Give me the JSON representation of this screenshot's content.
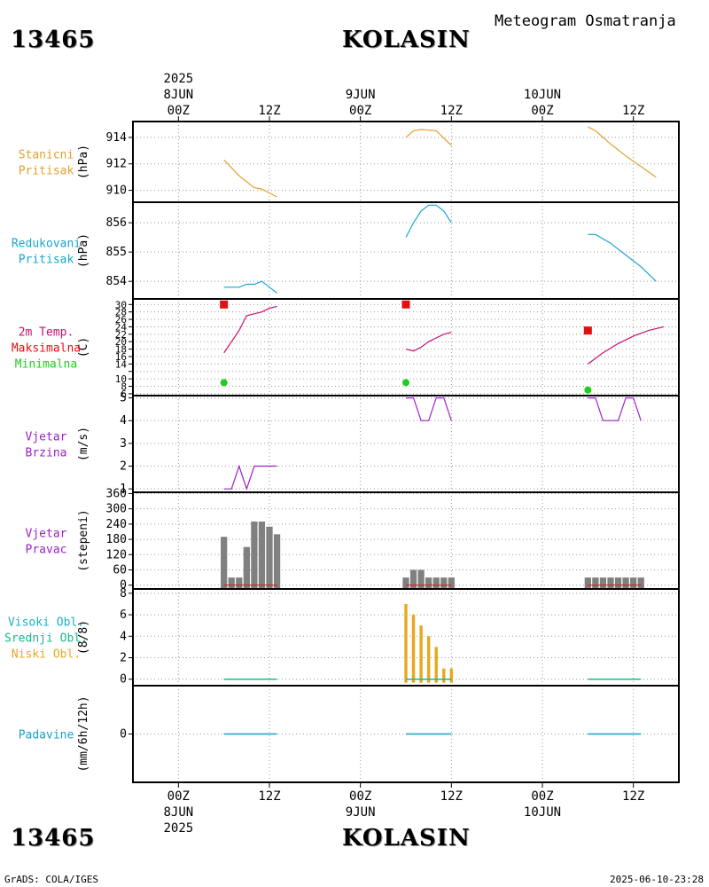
{
  "header": {
    "station_id": "13465",
    "station_name": "KOLASIN",
    "product_title": "Meteogram Osmatranja"
  },
  "footer": {
    "station_id": "13465",
    "station_name": "KOLASIN",
    "credit": "GrADS: COLA/IGES",
    "timestamp": "2025-06-10-23:28"
  },
  "colors": {
    "station_pressure": "#e0a030",
    "reduced_pressure": "#1aa5d0",
    "temp_line": "#c8106e",
    "temp_max": "#e01010",
    "temp_min": "#20cc20",
    "wind": "#a020c8",
    "bars": "#808080",
    "clouds_low": "#e8a820",
    "clouds_mid": "#18b890",
    "clouds_high": "#18b0c8",
    "precip": "#18a0c8",
    "label_wind": "#a020c8"
  },
  "chart_data": {
    "type": "line",
    "title": "Meteogram Osmatranja",
    "station": "13465 KOLASIN",
    "time_axis": {
      "unit": "hours since 2025-06-08 00Z",
      "range": [
        -6,
        66
      ],
      "top_year": "2025",
      "bottom_year": "2025",
      "ticks": [
        {
          "h": 0,
          "time": "00Z",
          "date": "8JUN"
        },
        {
          "h": 12,
          "time": "12Z",
          "date": ""
        },
        {
          "h": 24,
          "time": "00Z",
          "date": "9JUN"
        },
        {
          "h": 36,
          "time": "12Z",
          "date": ""
        },
        {
          "h": 48,
          "time": "00Z",
          "date": "10JUN"
        },
        {
          "h": 60,
          "time": "12Z",
          "date": ""
        }
      ]
    },
    "panels": [
      {
        "id": "station_pressure",
        "labels": [
          {
            "text": "Stanicni",
            "color": "#e0a030"
          },
          {
            "text": "Pritisak",
            "color": "#e0a030"
          }
        ],
        "ylabel": "(hPa)",
        "ylim": [
          909.1,
          915.2
        ],
        "yticks": [
          910,
          912,
          914
        ],
        "series": [
          {
            "name": "Stanicni pritisak",
            "color": "#e0a030",
            "segments": [
              {
                "x": [
                  6,
                  8,
                  10,
                  11,
                  12,
                  13
                ],
                "y": [
                  912.3,
                  911.1,
                  910.2,
                  910.1,
                  909.8,
                  909.5
                ]
              },
              {
                "x": [
                  30,
                  31,
                  32,
                  34,
                  36
                ],
                "y": [
                  914.0,
                  914.5,
                  914.6,
                  914.5,
                  913.4
                ]
              },
              {
                "x": [
                  54,
                  55,
                  57,
                  59,
                  61,
                  63
                ],
                "y": [
                  914.8,
                  914.5,
                  913.5,
                  912.6,
                  911.8,
                  911.0
                ]
              }
            ]
          }
        ]
      },
      {
        "id": "reduced_pressure",
        "labels": [
          {
            "text": "Redukovani",
            "color": "#1aa5d0"
          },
          {
            "text": "Pritisak",
            "color": "#1aa5d0"
          }
        ],
        "ylabel": "(hPa)",
        "ylim": [
          853.4,
          856.7
        ],
        "yticks": [
          854,
          855,
          856
        ],
        "series": [
          {
            "name": "Redukovani pritisak",
            "color": "#1aa5d0",
            "segments": [
              {
                "x": [
                  6,
                  8,
                  9,
                  10,
                  11,
                  12,
                  13
                ],
                "y": [
                  853.8,
                  853.8,
                  853.9,
                  853.9,
                  854.0,
                  853.8,
                  853.6
                ]
              },
              {
                "x": [
                  30,
                  31,
                  32,
                  33,
                  34,
                  35,
                  36
                ],
                "y": [
                  855.5,
                  856.0,
                  856.4,
                  856.6,
                  856.6,
                  856.4,
                  856.0
                ]
              },
              {
                "x": [
                  54,
                  55,
                  57,
                  59,
                  61,
                  63
                ],
                "y": [
                  855.6,
                  855.6,
                  855.3,
                  854.9,
                  854.5,
                  854.0
                ]
              }
            ]
          }
        ]
      },
      {
        "id": "temperature",
        "labels": [
          {
            "text": "2m Temp.",
            "color": "#c8106e"
          },
          {
            "text": "Maksimalna",
            "color": "#e01010"
          },
          {
            "text": "Minimalna",
            "color": "#20cc20"
          }
        ],
        "ylabel": "(C)",
        "ylim": [
          5.5,
          31.5
        ],
        "yticks": [
          6,
          8,
          10,
          12,
          14,
          16,
          18,
          20,
          22,
          24,
          26,
          28,
          30
        ],
        "tick_labels": [
          6,
          8,
          10,
          14,
          16,
          18,
          20,
          22,
          24,
          26,
          28,
          30
        ],
        "series": [
          {
            "name": "2m Temp.",
            "color": "#c8106e",
            "segments": [
              {
                "x": [
                  6,
                  7,
                  8,
                  9,
                  10,
                  11,
                  12,
                  13
                ],
                "y": [
                  17.0,
                  20.0,
                  23.0,
                  27.0,
                  27.5,
                  28.0,
                  29.0,
                  29.5
                ]
              },
              {
                "x": [
                  30,
                  31,
                  32,
                  33,
                  34,
                  35,
                  36
                ],
                "y": [
                  18.0,
                  17.5,
                  18.5,
                  20.0,
                  21.0,
                  22.0,
                  22.5
                ]
              },
              {
                "x": [
                  54,
                  56,
                  58,
                  60,
                  62,
                  64
                ],
                "y": [
                  14.0,
                  17.0,
                  19.5,
                  21.5,
                  23.0,
                  24.0
                ]
              }
            ]
          }
        ],
        "max_points": {
          "name": "Maksimalna",
          "color": "#e01010",
          "x": [
            6,
            30,
            54
          ],
          "y": [
            30.0,
            30.0,
            23.0
          ]
        },
        "min_points": {
          "name": "Minimalna",
          "color": "#20cc20",
          "x": [
            6,
            30,
            54
          ],
          "y": [
            9.0,
            9.0,
            7.0
          ]
        }
      },
      {
        "id": "wind_speed",
        "labels": [
          {
            "text": "Vjetar",
            "color": "#a020c8"
          },
          {
            "text": "Brzina",
            "color": "#a020c8"
          }
        ],
        "ylabel": "(m/s)",
        "ylim": [
          0.85,
          5.1
        ],
        "yticks": [
          1,
          2,
          3,
          4,
          5
        ],
        "series": [
          {
            "name": "Brzina vjetra",
            "color": "#a020c8",
            "segments": [
              {
                "x": [
                  6,
                  7,
                  8,
                  9,
                  10,
                  11,
                  12,
                  13
                ],
                "y": [
                  1,
                  1,
                  2,
                  1,
                  2,
                  2,
                  2,
                  2
                ]
              },
              {
                "x": [
                  30,
                  31,
                  32,
                  33,
                  34,
                  35,
                  36
                ],
                "y": [
                  5,
                  5,
                  4,
                  4,
                  5,
                  5,
                  4
                ]
              },
              {
                "x": [
                  54,
                  55,
                  56,
                  57,
                  58,
                  59,
                  60,
                  61
                ],
                "y": [
                  5,
                  5,
                  4,
                  4,
                  4,
                  5,
                  5,
                  4
                ]
              }
            ]
          }
        ]
      },
      {
        "id": "wind_direction",
        "labels": [
          {
            "text": "Vjetar",
            "color": "#a020c8"
          },
          {
            "text": "Pravac",
            "color": "#a020c8"
          }
        ],
        "ylabel": "(stepeni)",
        "ylim": [
          -15,
          365
        ],
        "yticks": [
          0,
          60,
          120,
          180,
          240,
          300,
          360
        ],
        "bars": {
          "name": "Pravac vjetra",
          "color": "#808080",
          "width_h": 0.85,
          "x": [
            6,
            7,
            8,
            9,
            10,
            11,
            12,
            13,
            30,
            31,
            32,
            33,
            34,
            35,
            36,
            54,
            55,
            56,
            57,
            58,
            59,
            60,
            61
          ],
          "y": [
            190,
            30,
            30,
            150,
            250,
            250,
            230,
            200,
            30,
            60,
            60,
            30,
            30,
            30,
            30,
            30,
            30,
            30,
            30,
            30,
            30,
            30,
            30
          ]
        }
      },
      {
        "id": "clouds",
        "labels": [
          {
            "text": "Visoki Obl.",
            "color": "#18b0c8"
          },
          {
            "text": "Srednji Obl.",
            "color": "#18b890"
          },
          {
            "text": "Niski Obl.",
            "color": "#e8a820"
          }
        ],
        "ylabel": "(8/8)",
        "ylim": [
          -0.6,
          8.4
        ],
        "yticks": [
          0,
          2,
          4,
          6,
          8
        ],
        "bars": {
          "name": "Niski oblaci",
          "color": "#e8a820",
          "width_h": 0.4,
          "x": [
            30,
            31,
            32,
            33,
            34,
            35,
            36
          ],
          "y": [
            7,
            6,
            5,
            4,
            3,
            1,
            1
          ]
        },
        "flat_segments": [
          [
            6,
            13
          ],
          [
            30,
            36
          ],
          [
            54,
            61
          ]
        ]
      },
      {
        "id": "precip",
        "labels": [
          {
            "text": "Padavine",
            "color": "#18a0c8"
          }
        ],
        "ylabel": "(mm/6h/12h)",
        "ylim": [
          -5,
          5
        ],
        "yticks": [
          0
        ],
        "flat_segments": [
          [
            6,
            13
          ],
          [
            30,
            36
          ],
          [
            54,
            61
          ]
        ]
      }
    ]
  }
}
